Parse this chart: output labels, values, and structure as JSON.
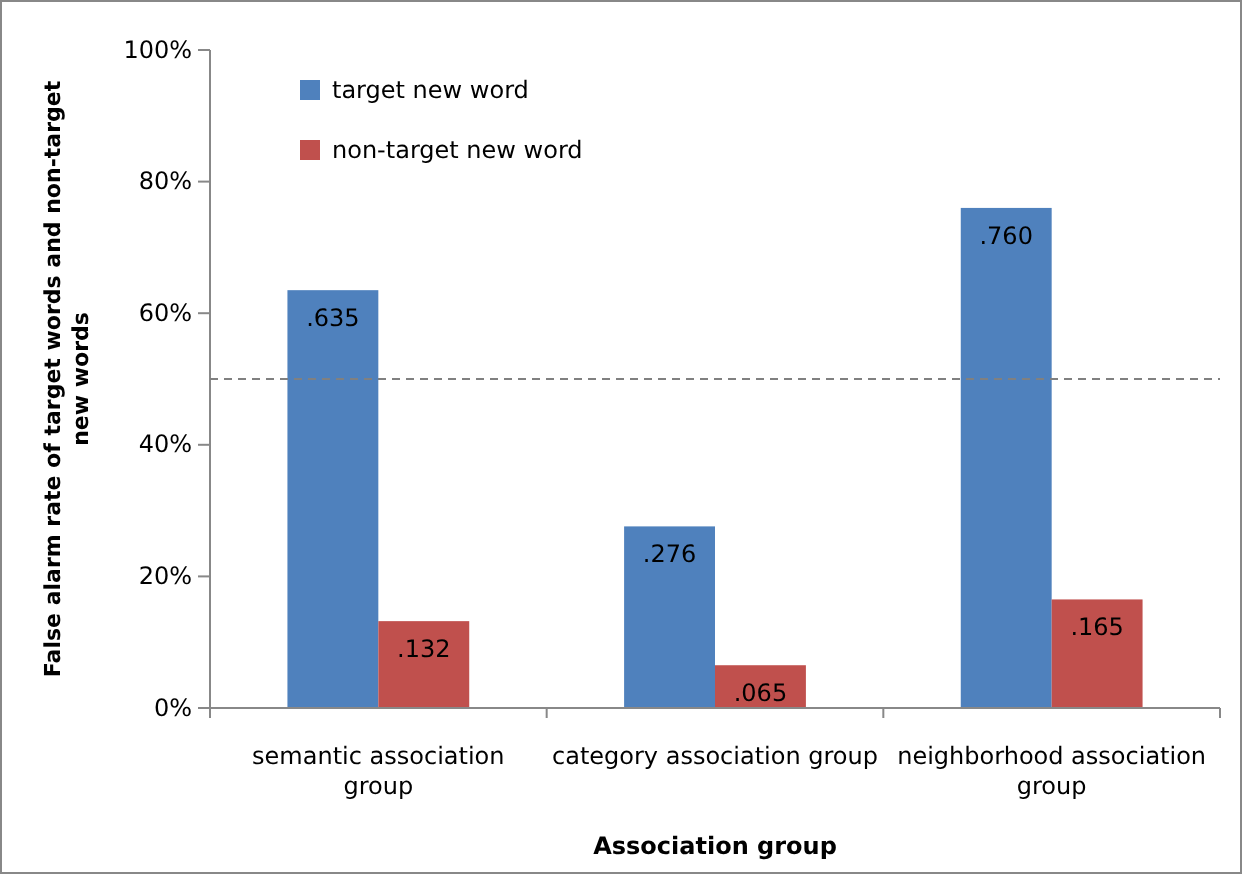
{
  "chart_data": {
    "type": "bar",
    "xlabel": "Association group",
    "ylabel": "False alarm rate of target words and non-target new words",
    "categories": [
      "semantic association group",
      "category association group",
      "neighborhood association group"
    ],
    "series": [
      {
        "name": "target new word",
        "color": "#4f81bd",
        "values": [
          0.635,
          0.276,
          0.76
        ],
        "value_labels": [
          ".635",
          ".276",
          ".760"
        ]
      },
      {
        "name": "non-target new word",
        "color": "#c0504d",
        "values": [
          0.132,
          0.065,
          0.165
        ],
        "value_labels": [
          ".132",
          ".065",
          ".165"
        ]
      }
    ],
    "ylim": [
      0,
      1
    ],
    "yticks": [
      {
        "value": 0,
        "label": "0%"
      },
      {
        "value": 0.2,
        "label": "20%"
      },
      {
        "value": 0.4,
        "label": "40%"
      },
      {
        "value": 0.6,
        "label": "60%"
      },
      {
        "value": 0.8,
        "label": "80%"
      },
      {
        "value": 1,
        "label": "100%"
      }
    ],
    "ref_lines": [
      {
        "axis": "y",
        "value": 0.5,
        "color": "#808080",
        "line_style": "dashed"
      }
    ],
    "legend": "top left",
    "grid": false
  }
}
